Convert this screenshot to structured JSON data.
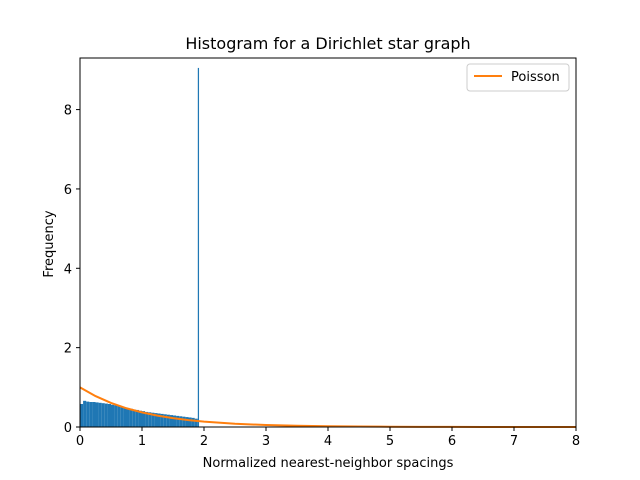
{
  "chart_data": {
    "type": "bar",
    "title": "Histogram for a Dirichlet star graph",
    "xlabel": "Normalized nearest-neighbor spacings",
    "ylabel": "Frequency",
    "xlim": [
      0,
      8
    ],
    "ylim": [
      0,
      9.3
    ],
    "xticks": [
      "0",
      "1",
      "2",
      "3",
      "4",
      "5",
      "6",
      "7",
      "8"
    ],
    "yticks": [
      "0",
      "2",
      "4",
      "6",
      "8"
    ],
    "grid": false,
    "legend_position": "top-right",
    "histogram": {
      "color": "#1f77b4",
      "bins": [
        {
          "x0": 0.0,
          "x1": 0.05,
          "value": 0.58
        },
        {
          "x0": 0.05,
          "x1": 0.1,
          "value": 0.66
        },
        {
          "x0": 0.1,
          "x1": 0.15,
          "value": 0.64
        },
        {
          "x0": 0.15,
          "x1": 0.2,
          "value": 0.63
        },
        {
          "x0": 0.2,
          "x1": 0.25,
          "value": 0.63
        },
        {
          "x0": 0.25,
          "x1": 0.3,
          "value": 0.62
        },
        {
          "x0": 0.3,
          "x1": 0.35,
          "value": 0.61
        },
        {
          "x0": 0.35,
          "x1": 0.4,
          "value": 0.6
        },
        {
          "x0": 0.4,
          "x1": 0.45,
          "value": 0.59
        },
        {
          "x0": 0.45,
          "x1": 0.5,
          "value": 0.58
        },
        {
          "x0": 0.5,
          "x1": 0.55,
          "value": 0.56
        },
        {
          "x0": 0.55,
          "x1": 0.6,
          "value": 0.55
        },
        {
          "x0": 0.6,
          "x1": 0.65,
          "value": 0.53
        },
        {
          "x0": 0.65,
          "x1": 0.7,
          "value": 0.51
        },
        {
          "x0": 0.7,
          "x1": 0.75,
          "value": 0.49
        },
        {
          "x0": 0.75,
          "x1": 0.8,
          "value": 0.48
        },
        {
          "x0": 0.8,
          "x1": 0.85,
          "value": 0.46
        },
        {
          "x0": 0.85,
          "x1": 0.9,
          "value": 0.44
        },
        {
          "x0": 0.9,
          "x1": 0.95,
          "value": 0.43
        },
        {
          "x0": 0.95,
          "x1": 1.0,
          "value": 0.41
        },
        {
          "x0": 1.0,
          "x1": 1.05,
          "value": 0.4
        },
        {
          "x0": 1.05,
          "x1": 1.1,
          "value": 0.38
        },
        {
          "x0": 1.1,
          "x1": 1.15,
          "value": 0.37
        },
        {
          "x0": 1.15,
          "x1": 1.2,
          "value": 0.36
        },
        {
          "x0": 1.2,
          "x1": 1.25,
          "value": 0.35
        },
        {
          "x0": 1.25,
          "x1": 1.3,
          "value": 0.34
        },
        {
          "x0": 1.3,
          "x1": 1.35,
          "value": 0.33
        },
        {
          "x0": 1.35,
          "x1": 1.4,
          "value": 0.32
        },
        {
          "x0": 1.4,
          "x1": 1.45,
          "value": 0.31
        },
        {
          "x0": 1.45,
          "x1": 1.5,
          "value": 0.3
        },
        {
          "x0": 1.5,
          "x1": 1.55,
          "value": 0.29
        },
        {
          "x0": 1.55,
          "x1": 1.6,
          "value": 0.28
        },
        {
          "x0": 1.6,
          "x1": 1.65,
          "value": 0.27
        },
        {
          "x0": 1.65,
          "x1": 1.7,
          "value": 0.26
        },
        {
          "x0": 1.7,
          "x1": 1.75,
          "value": 0.25
        },
        {
          "x0": 1.75,
          "x1": 1.8,
          "value": 0.24
        },
        {
          "x0": 1.8,
          "x1": 1.85,
          "value": 0.23
        },
        {
          "x0": 1.85,
          "x1": 1.9,
          "value": 0.21
        },
        {
          "x0": 1.9,
          "x1": 1.92,
          "value": 9.05
        }
      ]
    },
    "series": [
      {
        "name": "Poisson",
        "type": "line",
        "color": "#ff7f0e",
        "function": "exp(-x)",
        "x": [
          0,
          0.25,
          0.5,
          0.75,
          1,
          1.25,
          1.5,
          1.75,
          2,
          2.5,
          3,
          3.5,
          4,
          4.5,
          5,
          5.5,
          6,
          6.5,
          7,
          7.5,
          8
        ],
        "y": [
          1.0,
          0.779,
          0.607,
          0.472,
          0.368,
          0.287,
          0.223,
          0.174,
          0.135,
          0.082,
          0.05,
          0.03,
          0.018,
          0.011,
          0.007,
          0.004,
          0.002,
          0.0015,
          0.0009,
          0.0006,
          0.0003
        ]
      }
    ]
  }
}
